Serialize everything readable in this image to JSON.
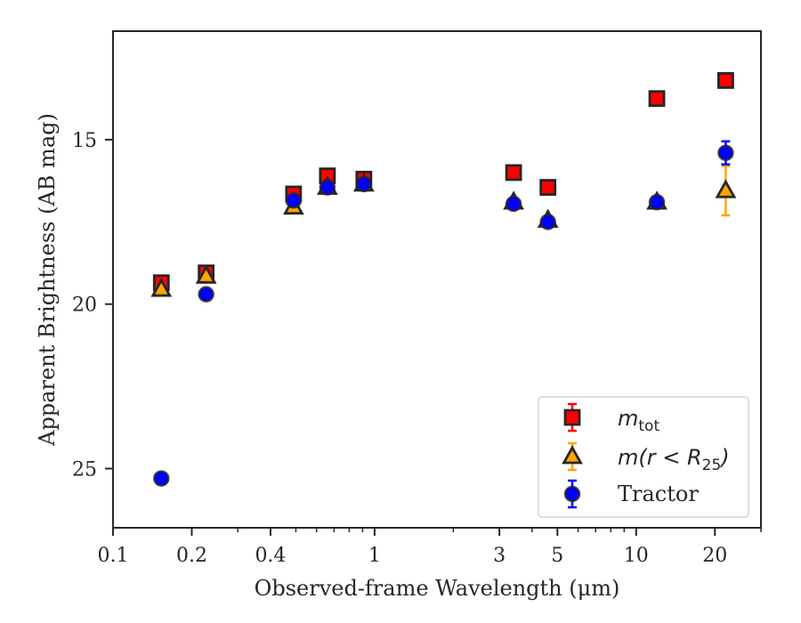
{
  "chart_data": {
    "type": "scatter",
    "title": "",
    "xlabel": "Observed-frame Wavelength (μm)",
    "ylabel": "Apparent Brightness (AB mag)",
    "xscale": "log",
    "yscale": "linear",
    "y_inverted": true,
    "xlim": [
      0.1,
      30
    ],
    "ylim": [
      26.8,
      11.7
    ],
    "xticks": [
      0.1,
      0.2,
      0.4,
      1,
      3,
      5,
      10,
      20
    ],
    "xtick_labels": [
      "0.1",
      "0.2",
      "0.4",
      "1",
      "3",
      "5",
      "10",
      "20"
    ],
    "yticks": [
      15,
      20,
      25
    ],
    "ytick_labels": [
      "15",
      "20",
      "25"
    ],
    "grid": false,
    "legend_position": "bottom-right",
    "series": [
      {
        "name": "m_tot",
        "legend_main": "m",
        "legend_sub": "tot",
        "marker": "square",
        "color": "#ff0000",
        "edgecolor": "#262626",
        "x": [
          0.153,
          0.227,
          0.49,
          0.66,
          0.91,
          3.4,
          4.6,
          12.0,
          22.0
        ],
        "y": [
          19.35,
          19.05,
          16.65,
          16.1,
          16.2,
          16.0,
          16.45,
          13.75,
          13.2
        ],
        "yerr": [
          0.05,
          0.05,
          0.05,
          0.05,
          0.05,
          0.05,
          0.05,
          0.05,
          0.05
        ]
      },
      {
        "name": "m(r < R25)",
        "legend_main": "m(r < R",
        "legend_sub": "25",
        "legend_tail": ")",
        "marker": "triangle",
        "color": "#ffa500",
        "edgecolor": "#262626",
        "x": [
          0.153,
          0.227,
          0.49,
          0.66,
          0.91,
          3.4,
          4.6,
          12.0,
          22.0
        ],
        "y": [
          19.55,
          19.15,
          17.05,
          16.45,
          16.35,
          16.9,
          17.45,
          16.9,
          16.55
        ],
        "yerr": [
          0.05,
          0.05,
          0.05,
          0.05,
          0.05,
          0.05,
          0.05,
          0.1,
          0.75
        ]
      },
      {
        "name": "Tractor",
        "marker": "circle",
        "color": "#0000ff",
        "edgecolor": "#262626",
        "x": [
          0.153,
          0.227,
          0.49,
          0.66,
          0.91,
          3.4,
          4.6,
          12.0,
          22.0
        ],
        "y": [
          25.3,
          19.7,
          16.85,
          16.45,
          16.35,
          16.95,
          17.5,
          16.9,
          15.4
        ],
        "yerr": [
          0.05,
          0.05,
          0.05,
          0.05,
          0.05,
          0.05,
          0.05,
          0.05,
          0.35
        ]
      }
    ]
  }
}
